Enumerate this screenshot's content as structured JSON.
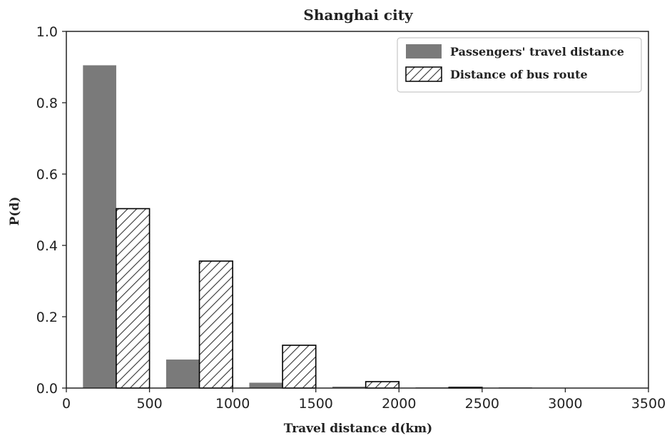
{
  "chart_data": {
    "type": "bar",
    "title": "Shanghai city",
    "xlabel": "Travel distance d(km)",
    "ylabel": "P(d)",
    "xlim": [
      0,
      3500
    ],
    "ylim": [
      0,
      1.0
    ],
    "x_ticks": [
      "0",
      "500",
      "1000",
      "1500",
      "2000",
      "2500",
      "3000",
      "3500"
    ],
    "y_ticks": [
      "0.0",
      "0.2",
      "0.4",
      "0.6",
      "0.8",
      "1.0"
    ],
    "grid": false,
    "legend_position": "top-right",
    "series": [
      {
        "name": "Passengers' travel distance",
        "color": "#7a7a7a",
        "style": "solid",
        "bins": [
          {
            "start": 100,
            "end": 300,
            "value": 0.905
          },
          {
            "start": 600,
            "end": 800,
            "value": 0.08
          },
          {
            "start": 1100,
            "end": 1300,
            "value": 0.015
          },
          {
            "start": 1600,
            "end": 1800,
            "value": 0.004
          },
          {
            "start": 2100,
            "end": 2300,
            "value": 0.001
          },
          {
            "start": 2600,
            "end": 2800,
            "value": 0.0005
          }
        ]
      },
      {
        "name": "Distance of bus route",
        "color": "#000000",
        "style": "hatched",
        "bins": [
          {
            "start": 300,
            "end": 500,
            "value": 0.503
          },
          {
            "start": 800,
            "end": 1000,
            "value": 0.356
          },
          {
            "start": 1300,
            "end": 1500,
            "value": 0.12
          },
          {
            "start": 1800,
            "end": 2000,
            "value": 0.018
          },
          {
            "start": 2300,
            "end": 2500,
            "value": 0.002
          }
        ]
      }
    ]
  }
}
